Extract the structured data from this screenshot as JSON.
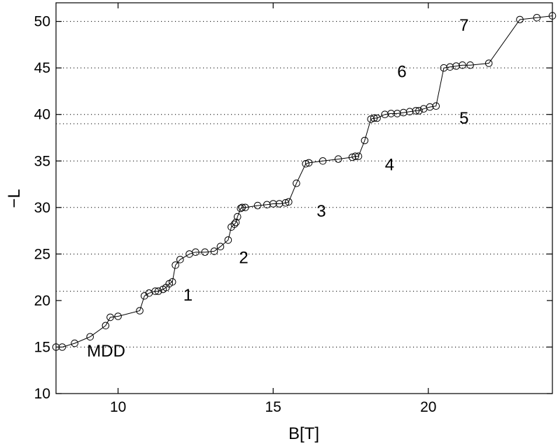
{
  "chart_data": {
    "type": "line",
    "xlabel": "B[T]",
    "ylabel": "−L",
    "xlim": [
      8,
      24
    ],
    "ylim": [
      10,
      52
    ],
    "x_ticks": [
      10,
      15,
      20
    ],
    "y_ticks": [
      10,
      15,
      20,
      25,
      30,
      35,
      40,
      45,
      50
    ],
    "grid": "horizontal dotted lines at selected levels",
    "reference_lines_y": [
      15,
      21,
      25,
      30,
      35,
      39,
      40,
      45,
      50
    ],
    "annotations": [
      {
        "text": "MDD",
        "x": 9.0,
        "y": 14.0
      },
      {
        "text": "1",
        "x": 12.1,
        "y": 20.0
      },
      {
        "text": "2",
        "x": 13.9,
        "y": 24.0
      },
      {
        "text": "3",
        "x": 16.4,
        "y": 29.0
      },
      {
        "text": "4",
        "x": 18.6,
        "y": 34.0
      },
      {
        "text": "5",
        "x": 21.0,
        "y": 39.0
      },
      {
        "text": "6",
        "x": 19.0,
        "y": 44.0
      },
      {
        "text": "7",
        "x": 21.0,
        "y": 49.0
      }
    ],
    "series": [
      {
        "x": [
          8.0,
          8.2,
          8.6,
          9.1,
          9.6,
          9.75,
          10.0,
          10.7,
          10.85,
          11.0,
          11.2,
          11.3,
          11.45,
          11.55,
          11.65,
          11.75,
          11.85,
          12.0,
          12.3,
          12.5,
          12.8,
          13.1,
          13.3,
          13.55,
          13.65,
          13.75,
          13.8,
          13.85,
          13.95,
          14.0,
          14.1,
          14.5,
          14.8,
          15.0,
          15.2,
          15.4,
          15.5,
          15.75,
          16.05,
          16.15,
          16.6,
          17.1,
          17.55,
          17.65,
          17.75,
          17.95,
          18.15,
          18.25,
          18.35,
          18.6,
          18.8,
          19.0,
          19.2,
          19.4,
          19.6,
          19.7,
          19.85,
          20.05,
          20.25,
          20.5,
          20.7,
          20.9,
          21.1,
          21.35,
          21.95,
          22.95,
          23.5,
          24.0
        ],
        "y": [
          15.0,
          15.0,
          15.4,
          16.1,
          17.3,
          18.2,
          18.3,
          18.9,
          20.5,
          20.8,
          21.0,
          21.0,
          21.2,
          21.4,
          21.8,
          22.0,
          23.8,
          24.4,
          25.0,
          25.2,
          25.2,
          25.3,
          25.8,
          26.5,
          27.9,
          28.2,
          28.4,
          29.0,
          29.9,
          30.0,
          30.0,
          30.2,
          30.3,
          30.4,
          30.4,
          30.5,
          30.6,
          32.6,
          34.7,
          34.8,
          35.0,
          35.2,
          35.4,
          35.5,
          35.5,
          37.2,
          39.5,
          39.6,
          39.6,
          40.0,
          40.1,
          40.1,
          40.2,
          40.3,
          40.4,
          40.4,
          40.6,
          40.8,
          40.9,
          45.0,
          45.1,
          45.2,
          45.3,
          45.3,
          45.5,
          50.2,
          50.4,
          50.6
        ]
      }
    ]
  }
}
